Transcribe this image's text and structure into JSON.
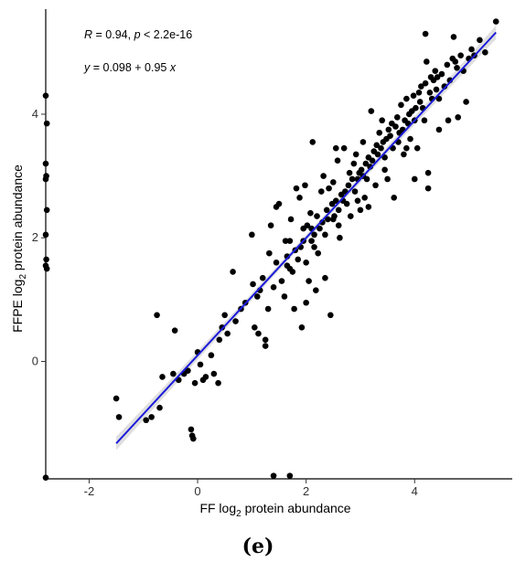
{
  "chart_data": {
    "type": "scatter",
    "xlabel": {
      "prefix": "FF  log",
      "subscript": "2",
      "suffix": " protein abundance"
    },
    "ylabel": {
      "prefix": "FFPE  log",
      "subscript": "2",
      "suffix": " protein abundance"
    },
    "xlim": [
      -2.8,
      5.8
    ],
    "ylim": [
      -1.9,
      5.7
    ],
    "xticks": [
      -2,
      0,
      2,
      4
    ],
    "yticks": [
      0,
      2,
      4
    ],
    "grid": false,
    "annotations": {
      "stats": {
        "r_label": "R",
        "r_value": " = 0.94, ",
        "p_label": "p",
        "p_value": " < 2.2e-16"
      },
      "equation": {
        "y_var": "y",
        "body": " = 0.098 + 0.95 ",
        "x_var": "x"
      }
    },
    "regression": {
      "intercept": 0.098,
      "slope": 0.95,
      "x_range": [
        -1.5,
        5.5
      ],
      "color": "#1a1adb",
      "band_color": "#c9c9c9"
    },
    "point_color": "#000000",
    "points": [
      [
        -1.5,
        -0.6
      ],
      [
        -1.45,
        -0.9
      ],
      [
        -0.95,
        -0.95
      ],
      [
        -0.85,
        -0.9
      ],
      [
        -0.75,
        0.75
      ],
      [
        -0.7,
        -0.75
      ],
      [
        -0.65,
        -0.25
      ],
      [
        -0.45,
        -0.2
      ],
      [
        -0.42,
        0.5
      ],
      [
        -0.35,
        -0.3
      ],
      [
        -0.25,
        -0.2
      ],
      [
        -0.18,
        -0.15
      ],
      [
        -0.12,
        -1.1
      ],
      [
        -0.1,
        -1.2
      ],
      [
        -0.08,
        -1.25
      ],
      [
        -0.05,
        -0.35
      ],
      [
        0.0,
        0.15
      ],
      [
        0.05,
        -0.05
      ],
      [
        0.1,
        -0.3
      ],
      [
        0.15,
        -0.25
      ],
      [
        0.25,
        0.1
      ],
      [
        0.3,
        -0.2
      ],
      [
        0.38,
        -0.35
      ],
      [
        0.4,
        0.35
      ],
      [
        0.45,
        0.55
      ],
      [
        0.5,
        0.75
      ],
      [
        0.55,
        0.45
      ],
      [
        0.65,
        1.45
      ],
      [
        0.7,
        0.65
      ],
      [
        0.8,
        0.85
      ],
      [
        0.88,
        0.95
      ],
      [
        1.0,
        2.05
      ],
      [
        1.02,
        1.25
      ],
      [
        1.05,
        0.55
      ],
      [
        1.1,
        1.05
      ],
      [
        1.12,
        0.45
      ],
      [
        1.15,
        1.15
      ],
      [
        1.2,
        1.35
      ],
      [
        1.25,
        0.25
      ],
      [
        1.3,
        0.85
      ],
      [
        1.32,
        1.75
      ],
      [
        1.35,
        2.2
      ],
      [
        1.4,
        1.2
      ],
      [
        1.45,
        1.6
      ],
      [
        1.5,
        2.55
      ],
      [
        1.55,
        1.3
      ],
      [
        1.6,
        1.05
      ],
      [
        1.62,
        1.95
      ],
      [
        1.65,
        1.55
      ],
      [
        1.7,
        1.5
      ],
      [
        1.72,
        2.3
      ],
      [
        1.75,
        1.45
      ],
      [
        1.78,
        0.85
      ],
      [
        1.8,
        1.8
      ],
      [
        1.82,
        2.8
      ],
      [
        1.85,
        1.65
      ],
      [
        1.88,
        2.65
      ],
      [
        1.9,
        1.85
      ],
      [
        1.92,
        0.55
      ],
      [
        1.95,
        1.95
      ],
      [
        1.98,
        2.85
      ],
      [
        2.0,
        1.6
      ],
      [
        2.02,
        2.2
      ],
      [
        2.05,
        1.3
      ],
      [
        2.08,
        2.4
      ],
      [
        2.1,
        1.95
      ],
      [
        2.12,
        3.55
      ],
      [
        2.15,
        2.05
      ],
      [
        2.18,
        1.15
      ],
      [
        2.2,
        2.35
      ],
      [
        2.22,
        1.75
      ],
      [
        2.25,
        2.15
      ],
      [
        2.28,
        2.75
      ],
      [
        2.3,
        2.25
      ],
      [
        2.32,
        3.0
      ],
      [
        2.35,
        1.35
      ],
      [
        2.38,
        2.45
      ],
      [
        2.4,
        2.3
      ],
      [
        2.42,
        2.8
      ],
      [
        2.45,
        0.75
      ],
      [
        2.48,
        2.55
      ],
      [
        2.5,
        2.9
      ],
      [
        2.52,
        2.35
      ],
      [
        2.55,
        2.6
      ],
      [
        2.58,
        3.25
      ],
      [
        2.6,
        2.45
      ],
      [
        2.62,
        2.0
      ],
      [
        2.65,
        2.7
      ],
      [
        2.68,
        2.6
      ],
      [
        2.7,
        3.45
      ],
      [
        2.72,
        2.75
      ],
      [
        2.75,
        2.55
      ],
      [
        2.78,
        2.85
      ],
      [
        2.8,
        3.05
      ],
      [
        2.82,
        2.35
      ],
      [
        2.85,
        2.95
      ],
      [
        2.88,
        3.2
      ],
      [
        2.9,
        2.75
      ],
      [
        2.92,
        3.35
      ],
      [
        2.95,
        2.95
      ],
      [
        2.98,
        3.05
      ],
      [
        3.0,
        2.45
      ],
      [
        3.02,
        3.1
      ],
      [
        3.05,
        3.55
      ],
      [
        3.08,
        2.65
      ],
      [
        3.1,
        3.2
      ],
      [
        3.12,
        2.95
      ],
      [
        3.15,
        3.3
      ],
      [
        3.18,
        3.15
      ],
      [
        3.2,
        4.05
      ],
      [
        3.22,
        3.25
      ],
      [
        3.25,
        3.4
      ],
      [
        3.28,
        2.85
      ],
      [
        3.3,
        3.5
      ],
      [
        3.32,
        3.35
      ],
      [
        3.35,
        3.7
      ],
      [
        3.38,
        3.45
      ],
      [
        3.4,
        3.9
      ],
      [
        3.42,
        3.55
      ],
      [
        3.45,
        3.3
      ],
      [
        3.48,
        3.6
      ],
      [
        3.5,
        2.95
      ],
      [
        3.52,
        3.75
      ],
      [
        3.55,
        3.65
      ],
      [
        3.58,
        3.85
      ],
      [
        3.6,
        3.45
      ],
      [
        3.62,
        2.65
      ],
      [
        3.65,
        3.8
      ],
      [
        3.68,
        3.95
      ],
      [
        3.7,
        3.55
      ],
      [
        3.72,
        3.7
      ],
      [
        3.75,
        4.15
      ],
      [
        3.78,
        3.75
      ],
      [
        3.8,
        3.35
      ],
      [
        3.82,
        3.9
      ],
      [
        3.85,
        4.25
      ],
      [
        3.88,
        3.85
      ],
      [
        3.9,
        4.0
      ],
      [
        3.92,
        3.6
      ],
      [
        3.95,
        4.05
      ],
      [
        3.98,
        4.3
      ],
      [
        4.0,
        3.9
      ],
      [
        4.02,
        4.1
      ],
      [
        4.05,
        3.45
      ],
      [
        4.08,
        4.35
      ],
      [
        4.1,
        4.2
      ],
      [
        4.12,
        4.45
      ],
      [
        4.15,
        4.1
      ],
      [
        4.18,
        3.9
      ],
      [
        4.2,
        4.5
      ],
      [
        4.22,
        4.85
      ],
      [
        4.25,
        3.05
      ],
      [
        4.28,
        4.35
      ],
      [
        4.3,
        4.6
      ],
      [
        4.32,
        4.25
      ],
      [
        4.35,
        4.55
      ],
      [
        4.38,
        4.7
      ],
      [
        4.4,
        4.4
      ],
      [
        4.42,
        4.6
      ],
      [
        4.45,
        4.25
      ],
      [
        4.5,
        4.65
      ],
      [
        4.55,
        4.45
      ],
      [
        4.6,
        4.8
      ],
      [
        4.62,
        3.9
      ],
      [
        4.65,
        4.55
      ],
      [
        4.7,
        4.9
      ],
      [
        4.72,
        5.25
      ],
      [
        4.75,
        4.85
      ],
      [
        4.78,
        4.75
      ],
      [
        4.8,
        3.95
      ],
      [
        4.85,
        4.95
      ],
      [
        4.9,
        4.7
      ],
      [
        4.95,
        4.2
      ],
      [
        5.0,
        4.9
      ],
      [
        5.05,
        5.05
      ],
      [
        5.1,
        4.95
      ],
      [
        5.2,
        5.2
      ],
      [
        5.3,
        5.0
      ],
      [
        5.5,
        5.5
      ],
      [
        3.05,
        3.0
      ],
      [
        2.1,
        2.15
      ],
      [
        2.5,
        2.3
      ],
      [
        1.65,
        1.7
      ],
      [
        2.95,
        2.6
      ],
      [
        3.45,
        3.1
      ],
      [
        1.95,
        2.15
      ],
      [
        2.6,
        2.2
      ],
      [
        3.15,
        2.5
      ],
      [
        2.35,
        2.05
      ],
      [
        2.15,
        1.85
      ],
      [
        4.2,
        5.3
      ],
      [
        4.45,
        3.75
      ],
      [
        3.85,
        3.45
      ],
      [
        4.25,
        2.8
      ],
      [
        4.0,
        2.95
      ],
      [
        1.25,
        0.35
      ],
      [
        2.0,
        0.95
      ],
      [
        1.45,
        2.5
      ],
      [
        2.55,
        3.45
      ],
      [
        1.7,
        1.95
      ],
      [
        -2.8,
        4.3
      ],
      [
        -2.78,
        3.85
      ],
      [
        -2.8,
        3.2
      ],
      [
        -2.79,
        3.0
      ],
      [
        -2.8,
        2.95
      ],
      [
        -2.78,
        2.45
      ],
      [
        -2.8,
        2.05
      ],
      [
        -2.79,
        1.65
      ],
      [
        -2.8,
        1.55
      ],
      [
        -2.78,
        1.5
      ],
      [
        -2.8,
        -1.88
      ],
      [
        1.4,
        -1.85
      ],
      [
        1.7,
        -1.85
      ]
    ]
  },
  "caption": "(e)"
}
